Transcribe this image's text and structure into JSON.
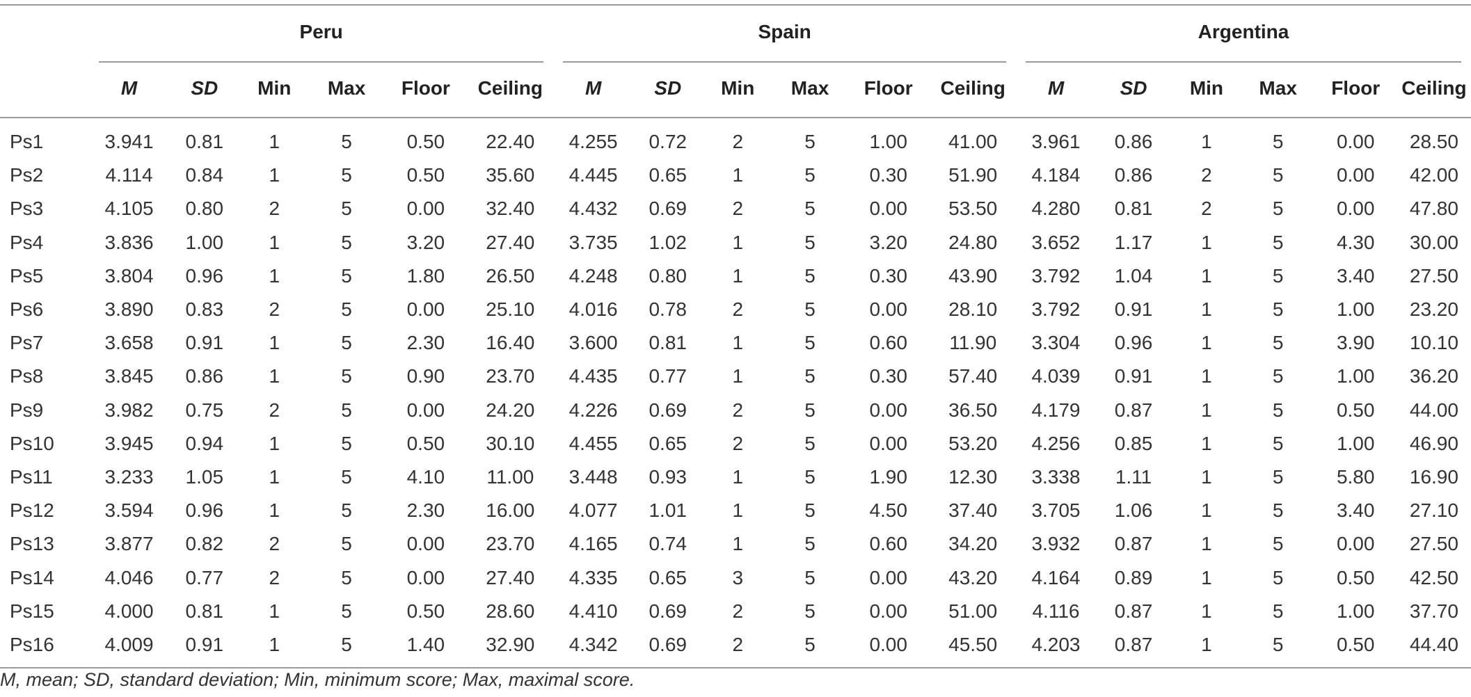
{
  "groups": [
    "Peru",
    "Spain",
    "Argentina"
  ],
  "columns": [
    "M",
    "SD",
    "Min",
    "Max",
    "Floor",
    "Ceiling"
  ],
  "rows": [
    {
      "label": "Ps1",
      "values": [
        "3.941",
        "0.81",
        "1",
        "5",
        "0.50",
        "22.40",
        "4.255",
        "0.72",
        "2",
        "5",
        "1.00",
        "41.00",
        "3.961",
        "0.86",
        "1",
        "5",
        "0.00",
        "28.50"
      ]
    },
    {
      "label": "Ps2",
      "values": [
        "4.114",
        "0.84",
        "1",
        "5",
        "0.50",
        "35.60",
        "4.445",
        "0.65",
        "1",
        "5",
        "0.30",
        "51.90",
        "4.184",
        "0.86",
        "2",
        "5",
        "0.00",
        "42.00"
      ]
    },
    {
      "label": "Ps3",
      "values": [
        "4.105",
        "0.80",
        "2",
        "5",
        "0.00",
        "32.40",
        "4.432",
        "0.69",
        "2",
        "5",
        "0.00",
        "53.50",
        "4.280",
        "0.81",
        "2",
        "5",
        "0.00",
        "47.80"
      ]
    },
    {
      "label": "Ps4",
      "values": [
        "3.836",
        "1.00",
        "1",
        "5",
        "3.20",
        "27.40",
        "3.735",
        "1.02",
        "1",
        "5",
        "3.20",
        "24.80",
        "3.652",
        "1.17",
        "1",
        "5",
        "4.30",
        "30.00"
      ]
    },
    {
      "label": "Ps5",
      "values": [
        "3.804",
        "0.96",
        "1",
        "5",
        "1.80",
        "26.50",
        "4.248",
        "0.80",
        "1",
        "5",
        "0.30",
        "43.90",
        "3.792",
        "1.04",
        "1",
        "5",
        "3.40",
        "27.50"
      ]
    },
    {
      "label": "Ps6",
      "values": [
        "3.890",
        "0.83",
        "2",
        "5",
        "0.00",
        "25.10",
        "4.016",
        "0.78",
        "2",
        "5",
        "0.00",
        "28.10",
        "3.792",
        "0.91",
        "1",
        "5",
        "1.00",
        "23.20"
      ]
    },
    {
      "label": "Ps7",
      "values": [
        "3.658",
        "0.91",
        "1",
        "5",
        "2.30",
        "16.40",
        "3.600",
        "0.81",
        "1",
        "5",
        "0.60",
        "11.90",
        "3.304",
        "0.96",
        "1",
        "5",
        "3.90",
        "10.10"
      ]
    },
    {
      "label": "Ps8",
      "values": [
        "3.845",
        "0.86",
        "1",
        "5",
        "0.90",
        "23.70",
        "4.435",
        "0.77",
        "1",
        "5",
        "0.30",
        "57.40",
        "4.039",
        "0.91",
        "1",
        "5",
        "1.00",
        "36.20"
      ]
    },
    {
      "label": "Ps9",
      "values": [
        "3.982",
        "0.75",
        "2",
        "5",
        "0.00",
        "24.20",
        "4.226",
        "0.69",
        "2",
        "5",
        "0.00",
        "36.50",
        "4.179",
        "0.87",
        "1",
        "5",
        "0.50",
        "44.00"
      ]
    },
    {
      "label": "Ps10",
      "values": [
        "3.945",
        "0.94",
        "1",
        "5",
        "0.50",
        "30.10",
        "4.455",
        "0.65",
        "2",
        "5",
        "0.00",
        "53.20",
        "4.256",
        "0.85",
        "1",
        "5",
        "1.00",
        "46.90"
      ]
    },
    {
      "label": "Ps11",
      "values": [
        "3.233",
        "1.05",
        "1",
        "5",
        "4.10",
        "11.00",
        "3.448",
        "0.93",
        "1",
        "5",
        "1.90",
        "12.30",
        "3.338",
        "1.11",
        "1",
        "5",
        "5.80",
        "16.90"
      ]
    },
    {
      "label": "Ps12",
      "values": [
        "3.594",
        "0.96",
        "1",
        "5",
        "2.30",
        "16.00",
        "4.077",
        "1.01",
        "1",
        "5",
        "4.50",
        "37.40",
        "3.705",
        "1.06",
        "1",
        "5",
        "3.40",
        "27.10"
      ]
    },
    {
      "label": "Ps13",
      "values": [
        "3.877",
        "0.82",
        "2",
        "5",
        "0.00",
        "23.70",
        "4.165",
        "0.74",
        "1",
        "5",
        "0.60",
        "34.20",
        "3.932",
        "0.87",
        "1",
        "5",
        "0.00",
        "27.50"
      ]
    },
    {
      "label": "Ps14",
      "values": [
        "4.046",
        "0.77",
        "2",
        "5",
        "0.00",
        "27.40",
        "4.335",
        "0.65",
        "3",
        "5",
        "0.00",
        "43.20",
        "4.164",
        "0.89",
        "1",
        "5",
        "0.50",
        "42.50"
      ]
    },
    {
      "label": "Ps15",
      "values": [
        "4.000",
        "0.81",
        "1",
        "5",
        "0.50",
        "28.60",
        "4.410",
        "0.69",
        "2",
        "5",
        "0.00",
        "51.00",
        "4.116",
        "0.87",
        "1",
        "5",
        "1.00",
        "37.70"
      ]
    },
    {
      "label": "Ps16",
      "values": [
        "4.009",
        "0.91",
        "1",
        "5",
        "1.40",
        "32.90",
        "4.342",
        "0.69",
        "2",
        "5",
        "0.00",
        "45.50",
        "4.203",
        "0.87",
        "1",
        "5",
        "0.50",
        "44.40"
      ]
    }
  ],
  "footnote": "M, mean; SD, standard deviation; Min, minimum score; Max, maximal score."
}
